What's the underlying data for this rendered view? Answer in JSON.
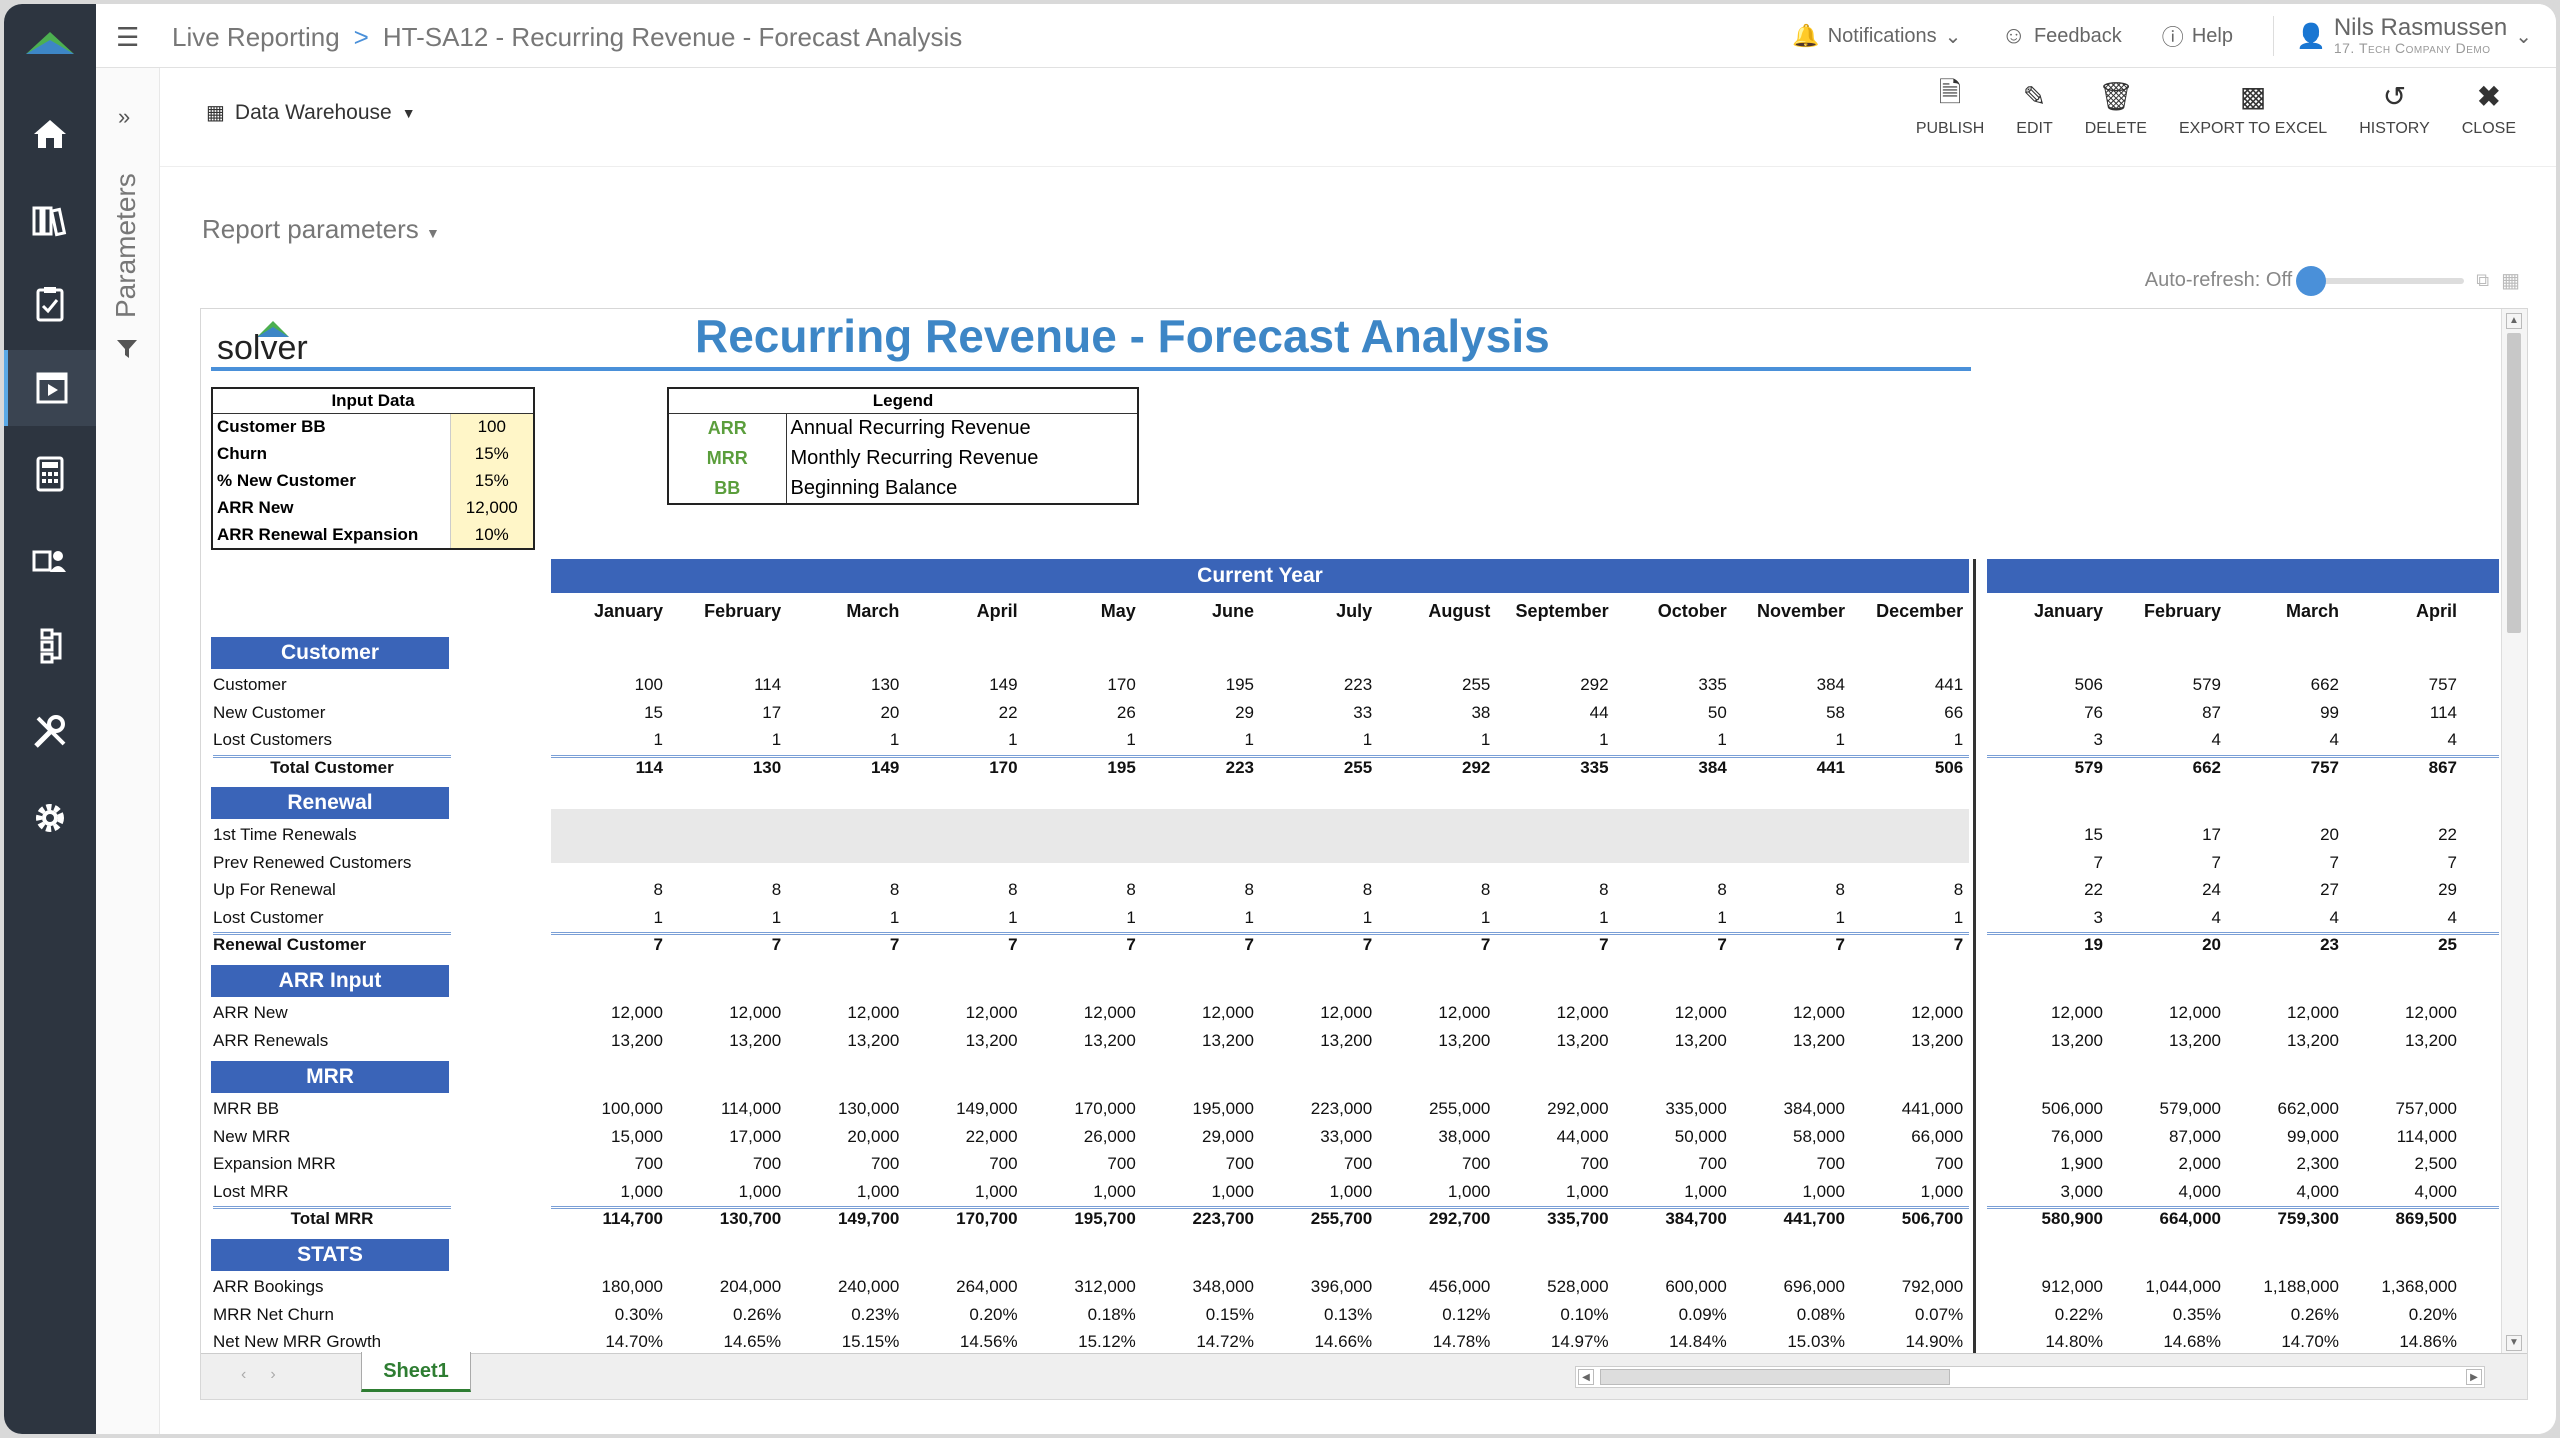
{
  "breadcrumb": {
    "root": "Live Reporting",
    "sep": ">",
    "current": "HT-SA12 - Recurring Revenue - Forecast Analysis"
  },
  "topbar": {
    "notifications": "Notifications",
    "feedback": "Feedback",
    "help": "Help",
    "user_name": "Nils Rasmussen",
    "company": "17. Tech Company Demo"
  },
  "parameters_label": "Parameters",
  "toolbar": {
    "data_source": "Data Warehouse",
    "publish": "PUBLISH",
    "edit": "EDIT",
    "delete": "DELETE",
    "export": "EXPORT TO EXCEL",
    "history": "HISTORY",
    "close": "CLOSE"
  },
  "report_params": "Report parameters",
  "autorefresh": "Auto-refresh: Off",
  "report": {
    "logo_text": "solver",
    "title": "Recurring Revenue - Forecast Analysis",
    "input": {
      "header": "Input Data",
      "rows": [
        {
          "label": "Customer BB",
          "value": "100"
        },
        {
          "label": "Churn",
          "value": "15%"
        },
        {
          "label": "% New Customer",
          "value": "15%"
        },
        {
          "label": "ARR New",
          "value": "12,000"
        },
        {
          "label": "ARR Renewal Expansion",
          "value": "10%"
        }
      ]
    },
    "legend": {
      "header": "Legend",
      "rows": [
        {
          "key": "ARR",
          "desc": "Annual Recurring Revenue"
        },
        {
          "key": "MRR",
          "desc": "Monthly Recurring Revenue"
        },
        {
          "key": "BB",
          "desc": "Beginning Balance"
        }
      ]
    },
    "current_year": "Current Year",
    "months": [
      "January",
      "February",
      "March",
      "April",
      "May",
      "June",
      "July",
      "August",
      "September",
      "October",
      "November",
      "December"
    ],
    "next_months": [
      "January",
      "February",
      "March",
      "April"
    ],
    "sections": [
      {
        "title": "Customer",
        "rows": [
          {
            "label": "Customer",
            "cy": [
              "100",
              "114",
              "130",
              "149",
              "170",
              "195",
              "223",
              "255",
              "292",
              "335",
              "384",
              "441"
            ],
            "ny": [
              "506",
              "579",
              "662",
              "757"
            ]
          },
          {
            "label": "New Customer",
            "cy": [
              "15",
              "17",
              "20",
              "22",
              "26",
              "29",
              "33",
              "38",
              "44",
              "50",
              "58",
              "66"
            ],
            "ny": [
              "76",
              "87",
              "99",
              "114"
            ]
          },
          {
            "label": "Lost Customers",
            "cy": [
              "1",
              "1",
              "1",
              "1",
              "1",
              "1",
              "1",
              "1",
              "1",
              "1",
              "1",
              "1"
            ],
            "ny": [
              "3",
              "4",
              "4",
              "4"
            ]
          },
          {
            "label": "Total Customer",
            "total": true,
            "center": true,
            "cy": [
              "114",
              "130",
              "149",
              "170",
              "195",
              "223",
              "255",
              "292",
              "335",
              "384",
              "441",
              "506"
            ],
            "ny": [
              "579",
              "662",
              "757",
              "867"
            ]
          }
        ]
      },
      {
        "title": "Renewal",
        "rows": [
          {
            "label": "1st Time Renewals",
            "cy": [
              "",
              "",
              "",
              "",
              "",
              "",
              "",
              "",
              "",
              "",
              "",
              ""
            ],
            "ny": [
              "15",
              "17",
              "20",
              "22"
            ]
          },
          {
            "label": "Prev Renewed Customers",
            "cy": [
              "",
              "",
              "",
              "",
              "",
              "",
              "",
              "",
              "",
              "",
              "",
              ""
            ],
            "ny": [
              "7",
              "7",
              "7",
              "7"
            ]
          },
          {
            "label": "Up For Renewal",
            "cy": [
              "8",
              "8",
              "8",
              "8",
              "8",
              "8",
              "8",
              "8",
              "8",
              "8",
              "8",
              "8"
            ],
            "ny": [
              "22",
              "24",
              "27",
              "29"
            ]
          },
          {
            "label": "Lost Customer",
            "cy": [
              "1",
              "1",
              "1",
              "1",
              "1",
              "1",
              "1",
              "1",
              "1",
              "1",
              "1",
              "1"
            ],
            "ny": [
              "3",
              "4",
              "4",
              "4"
            ]
          },
          {
            "label": "Renewal Customer",
            "total": true,
            "cy": [
              "7",
              "7",
              "7",
              "7",
              "7",
              "7",
              "7",
              "7",
              "7",
              "7",
              "7",
              "7"
            ],
            "ny": [
              "19",
              "20",
              "23",
              "25"
            ]
          }
        ]
      },
      {
        "title": "ARR Input",
        "rows": [
          {
            "label": "ARR New",
            "cy": [
              "12,000",
              "12,000",
              "12,000",
              "12,000",
              "12,000",
              "12,000",
              "12,000",
              "12,000",
              "12,000",
              "12,000",
              "12,000",
              "12,000"
            ],
            "ny": [
              "12,000",
              "12,000",
              "12,000",
              "12,000"
            ]
          },
          {
            "label": "ARR Renewals",
            "cy": [
              "13,200",
              "13,200",
              "13,200",
              "13,200",
              "13,200",
              "13,200",
              "13,200",
              "13,200",
              "13,200",
              "13,200",
              "13,200",
              "13,200"
            ],
            "ny": [
              "13,200",
              "13,200",
              "13,200",
              "13,200"
            ]
          }
        ]
      },
      {
        "title": "MRR",
        "rows": [
          {
            "label": "MRR BB",
            "cy": [
              "100,000",
              "114,000",
              "130,000",
              "149,000",
              "170,000",
              "195,000",
              "223,000",
              "255,000",
              "292,000",
              "335,000",
              "384,000",
              "441,000"
            ],
            "ny": [
              "506,000",
              "579,000",
              "662,000",
              "757,000"
            ]
          },
          {
            "label": "New MRR",
            "cy": [
              "15,000",
              "17,000",
              "20,000",
              "22,000",
              "26,000",
              "29,000",
              "33,000",
              "38,000",
              "44,000",
              "50,000",
              "58,000",
              "66,000"
            ],
            "ny": [
              "76,000",
              "87,000",
              "99,000",
              "114,000"
            ]
          },
          {
            "label": "Expansion MRR",
            "cy": [
              "700",
              "700",
              "700",
              "700",
              "700",
              "700",
              "700",
              "700",
              "700",
              "700",
              "700",
              "700"
            ],
            "ny": [
              "1,900",
              "2,000",
              "2,300",
              "2,500"
            ]
          },
          {
            "label": "Lost MRR",
            "cy": [
              "1,000",
              "1,000",
              "1,000",
              "1,000",
              "1,000",
              "1,000",
              "1,000",
              "1,000",
              "1,000",
              "1,000",
              "1,000",
              "1,000"
            ],
            "ny": [
              "3,000",
              "4,000",
              "4,000",
              "4,000"
            ]
          },
          {
            "label": "Total MRR",
            "total": true,
            "center": true,
            "cy": [
              "114,700",
              "130,700",
              "149,700",
              "170,700",
              "195,700",
              "223,700",
              "255,700",
              "292,700",
              "335,700",
              "384,700",
              "441,700",
              "506,700"
            ],
            "ny": [
              "580,900",
              "664,000",
              "759,300",
              "869,500"
            ]
          }
        ]
      },
      {
        "title": "STATS",
        "rows": [
          {
            "label": "ARR Bookings",
            "cy": [
              "180,000",
              "204,000",
              "240,000",
              "264,000",
              "312,000",
              "348,000",
              "396,000",
              "456,000",
              "528,000",
              "600,000",
              "696,000",
              "792,000"
            ],
            "ny": [
              "912,000",
              "1,044,000",
              "1,188,000",
              "1,368,000"
            ]
          },
          {
            "label": "MRR Net Churn",
            "cy": [
              "0.30%",
              "0.26%",
              "0.23%",
              "0.20%",
              "0.18%",
              "0.15%",
              "0.13%",
              "0.12%",
              "0.10%",
              "0.09%",
              "0.08%",
              "0.07%"
            ],
            "ny": [
              "0.22%",
              "0.35%",
              "0.26%",
              "0.20%"
            ]
          },
          {
            "label": "Net New MRR Growth",
            "cy": [
              "14.70%",
              "14.65%",
              "15.15%",
              "14.56%",
              "15.12%",
              "14.72%",
              "14.66%",
              "14.78%",
              "14.97%",
              "14.84%",
              "15.03%",
              "14.90%"
            ],
            "ny": [
              "14.80%",
              "14.68%",
              "14.70%",
              "14.86%"
            ]
          }
        ]
      }
    ]
  },
  "sheet_tab": "Sheet1",
  "colors": {
    "accent": "#3a64b8",
    "title": "#3d86c6",
    "nav": "#2d3540",
    "input_fill": "#fff6c8",
    "legend_key": "#5b9e3c"
  }
}
